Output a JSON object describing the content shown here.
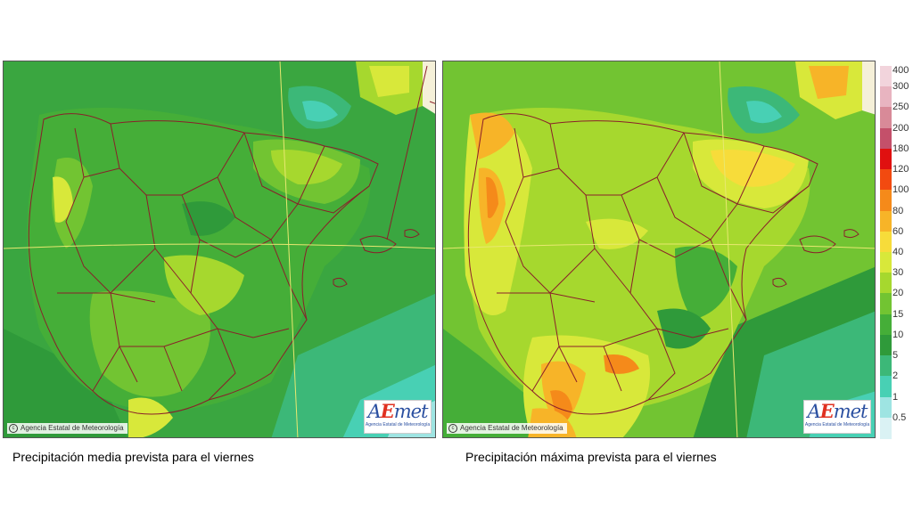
{
  "maps": [
    {
      "caption": "Precipitación media prevista para el viernes",
      "credit": "Agencia Estatal de Meteorología",
      "logo_text": "AEmet",
      "logo_subtext": "Agencia Estatal de Meteorología"
    },
    {
      "caption": "Precipitación máxima prevista para el viernes",
      "credit": "Agencia Estatal de Meteorología",
      "logo_text": "AEmet",
      "logo_subtext": "Agencia Estatal de Meteorología"
    }
  ],
  "legend": {
    "levels": [
      {
        "label": "400",
        "color": "#f2d4dc"
      },
      {
        "label": "300",
        "color": "#e8b4c0"
      },
      {
        "label": "250",
        "color": "#d88a98"
      },
      {
        "label": "200",
        "color": "#c4506a"
      },
      {
        "label": "180",
        "color": "#e01010"
      },
      {
        "label": "120",
        "color": "#f24a10"
      },
      {
        "label": "100",
        "color": "#f58a1a"
      },
      {
        "label": "80",
        "color": "#f7b428"
      },
      {
        "label": "60",
        "color": "#f7dc3a"
      },
      {
        "label": "40",
        "color": "#d8e83a"
      },
      {
        "label": "30",
        "color": "#a6d82e"
      },
      {
        "label": "20",
        "color": "#72c432"
      },
      {
        "label": "15",
        "color": "#45ae38"
      },
      {
        "label": "10",
        "color": "#2f9a3a"
      },
      {
        "label": "5",
        "color": "#3cb878"
      },
      {
        "label": "2",
        "color": "#48d0b4"
      },
      {
        "label": "1",
        "color": "#9ee4e2"
      },
      {
        "label": "0.5",
        "color": "#daf2f4"
      }
    ]
  },
  "colors": {
    "land_mid": "#45ae38",
    "sea": "#2f9a3a",
    "borders": "#8a1f2a",
    "graticule": "#e8e870"
  }
}
